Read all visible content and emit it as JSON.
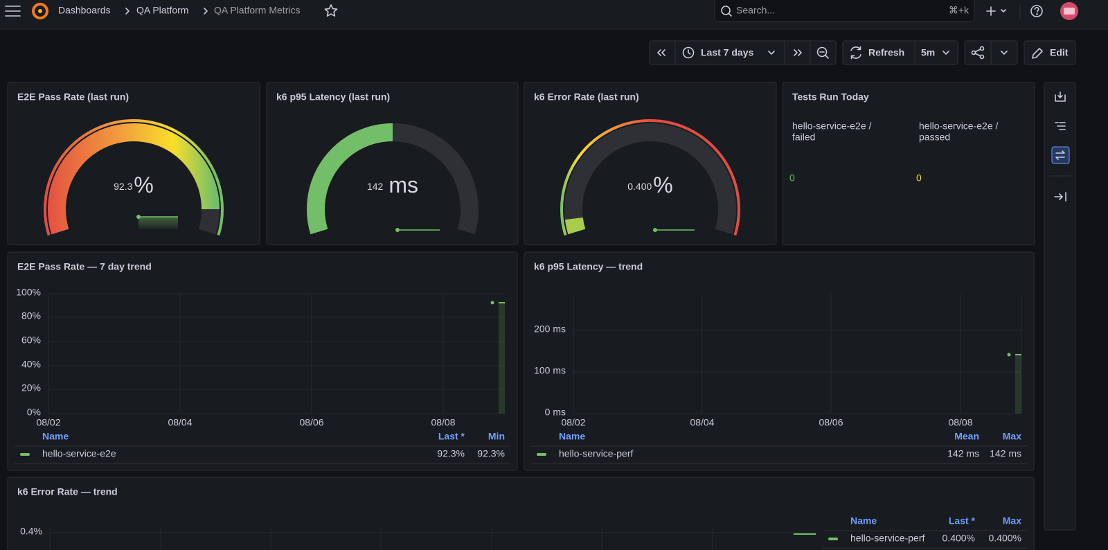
{
  "nav": {
    "breadcrumbs": [
      "Dashboards",
      "QA Platform",
      "QA Platform Metrics"
    ],
    "search": "Search...",
    "shortcut": "⌘+k"
  },
  "toolbar": {
    "time_range": "Last 7 days",
    "refresh": "Refresh",
    "interval": "5m",
    "edit": "Edit"
  },
  "panels": [
    {
      "title": "E2E Pass Rate (last run)",
      "value": "92.3",
      "unit": "%"
    },
    {
      "title": "k6 p95 Latency (last run)",
      "value": "142",
      "unit": "ms"
    },
    {
      "title": "k6 Error Rate (last run)",
      "value": "0.400",
      "unit": "%"
    },
    {
      "title": "Tests Run Today",
      "stats": [
        {
          "label": [
            "hello-service-e2e /",
            "failed"
          ],
          "value": "0"
        },
        {
          "label": [
            "hello-service-e2e /",
            "passed"
          ],
          "value": "0"
        }
      ]
    },
    {
      "title": "E2E Pass Rate — 7 day trend",
      "yticks": [
        "0%",
        "20%",
        "40%",
        "60%",
        "80%",
        "100%"
      ],
      "xticks": [
        "08/02",
        "08/04",
        "08/06",
        "08/08"
      ],
      "legend": {
        "columns": [
          "Name",
          "Last *",
          "Min"
        ],
        "rows": [
          [
            "hello-service-e2e",
            "92.3%",
            "92.3%"
          ]
        ]
      }
    },
    {
      "title": "k6 p95 Latency — trend",
      "yticks": [
        "0 ms",
        "100 ms",
        "200 ms"
      ],
      "xticks": [
        "08/02",
        "08/04",
        "08/06",
        "08/08"
      ],
      "legend": {
        "columns": [
          "Name",
          "Mean",
          "Max"
        ],
        "rows": [
          [
            "hello-service-perf",
            "142 ms",
            "142 ms"
          ]
        ]
      }
    },
    {
      "title": "k6 Error Rate — trend",
      "yticks": [
        "0.4%"
      ],
      "xticks": [],
      "legend": {
        "columns": [
          "Name",
          "Last *",
          "Max"
        ],
        "rows": [
          [
            "hello-service-perf",
            "0.400%",
            "0.400%"
          ]
        ]
      }
    }
  ]
}
